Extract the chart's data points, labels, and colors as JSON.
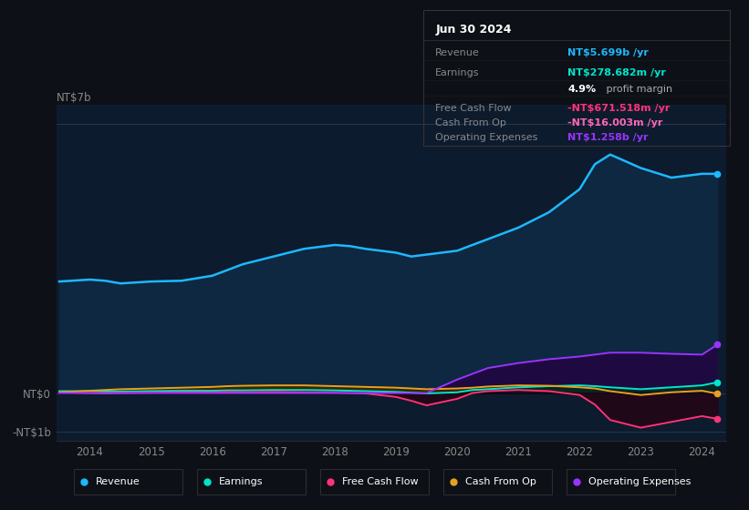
{
  "bg_color": "#0d1117",
  "plot_bg_color": "#0d1b2e",
  "years": [
    2013.5,
    2014.0,
    2014.25,
    2014.5,
    2015.0,
    2015.5,
    2016.0,
    2016.25,
    2016.5,
    2017.0,
    2017.5,
    2018.0,
    2018.25,
    2018.5,
    2019.0,
    2019.25,
    2019.5,
    2020.0,
    2020.25,
    2020.5,
    2021.0,
    2021.5,
    2022.0,
    2022.25,
    2022.5,
    2023.0,
    2023.5,
    2024.0,
    2024.25
  ],
  "revenue": [
    2.9,
    2.95,
    2.92,
    2.85,
    2.9,
    2.92,
    3.05,
    3.2,
    3.35,
    3.55,
    3.75,
    3.85,
    3.82,
    3.75,
    3.65,
    3.55,
    3.6,
    3.7,
    3.85,
    4.0,
    4.3,
    4.7,
    5.3,
    5.95,
    6.2,
    5.85,
    5.6,
    5.7,
    5.7
  ],
  "earnings": [
    0.05,
    0.05,
    0.04,
    0.04,
    0.05,
    0.06,
    0.06,
    0.07,
    0.07,
    0.08,
    0.08,
    0.07,
    0.06,
    0.05,
    0.03,
    0.01,
    -0.01,
    0.02,
    0.08,
    0.1,
    0.15,
    0.18,
    0.2,
    0.18,
    0.15,
    0.1,
    0.15,
    0.2,
    0.28
  ],
  "free_cash_flow": [
    0.02,
    0.0,
    -0.01,
    0.0,
    0.01,
    0.02,
    0.02,
    0.03,
    0.02,
    0.03,
    0.02,
    0.01,
    0.0,
    -0.01,
    -0.1,
    -0.2,
    -0.32,
    -0.15,
    0.0,
    0.05,
    0.08,
    0.05,
    -0.05,
    -0.3,
    -0.7,
    -0.9,
    -0.75,
    -0.6,
    -0.67
  ],
  "cash_from_op": [
    0.02,
    0.06,
    0.08,
    0.1,
    0.12,
    0.14,
    0.16,
    0.18,
    0.19,
    0.2,
    0.2,
    0.18,
    0.17,
    0.16,
    0.14,
    0.12,
    0.1,
    0.12,
    0.14,
    0.17,
    0.2,
    0.19,
    0.15,
    0.12,
    0.05,
    -0.05,
    0.02,
    0.06,
    -0.016
  ],
  "operating_expenses": [
    0.0,
    0.0,
    0.0,
    0.0,
    0.0,
    0.0,
    0.0,
    0.0,
    0.0,
    0.0,
    0.0,
    0.0,
    0.0,
    0.0,
    0.0,
    0.0,
    0.0,
    0.35,
    0.5,
    0.65,
    0.78,
    0.88,
    0.95,
    1.0,
    1.05,
    1.05,
    1.02,
    1.0,
    1.258
  ],
  "revenue_color": "#1eb8ff",
  "earnings_color": "#00e5cc",
  "fcf_color": "#ff3377",
  "cashop_color": "#e8a020",
  "opex_color": "#9933ff",
  "revenue_fill": "#0d2a40",
  "opex_fill": "#2a1050",
  "ylim": [
    -1.25,
    7.5
  ],
  "ytick_positions": [
    -1.0,
    0.0
  ],
  "ytick_top_label": "NT$7b",
  "ytick_top_pos": 7.0,
  "ytick_labels": [
    "-NT$1b",
    "NT$0"
  ],
  "xticks": [
    2014,
    2015,
    2016,
    2017,
    2018,
    2019,
    2020,
    2021,
    2022,
    2023,
    2024
  ],
  "tooltip_title": "Jun 30 2024",
  "legend_items": [
    {
      "label": "Revenue",
      "color": "#1eb8ff"
    },
    {
      "label": "Earnings",
      "color": "#00e5cc"
    },
    {
      "label": "Free Cash Flow",
      "color": "#ff3377"
    },
    {
      "label": "Cash From Op",
      "color": "#e8a020"
    },
    {
      "label": "Operating Expenses",
      "color": "#9933ff"
    }
  ]
}
